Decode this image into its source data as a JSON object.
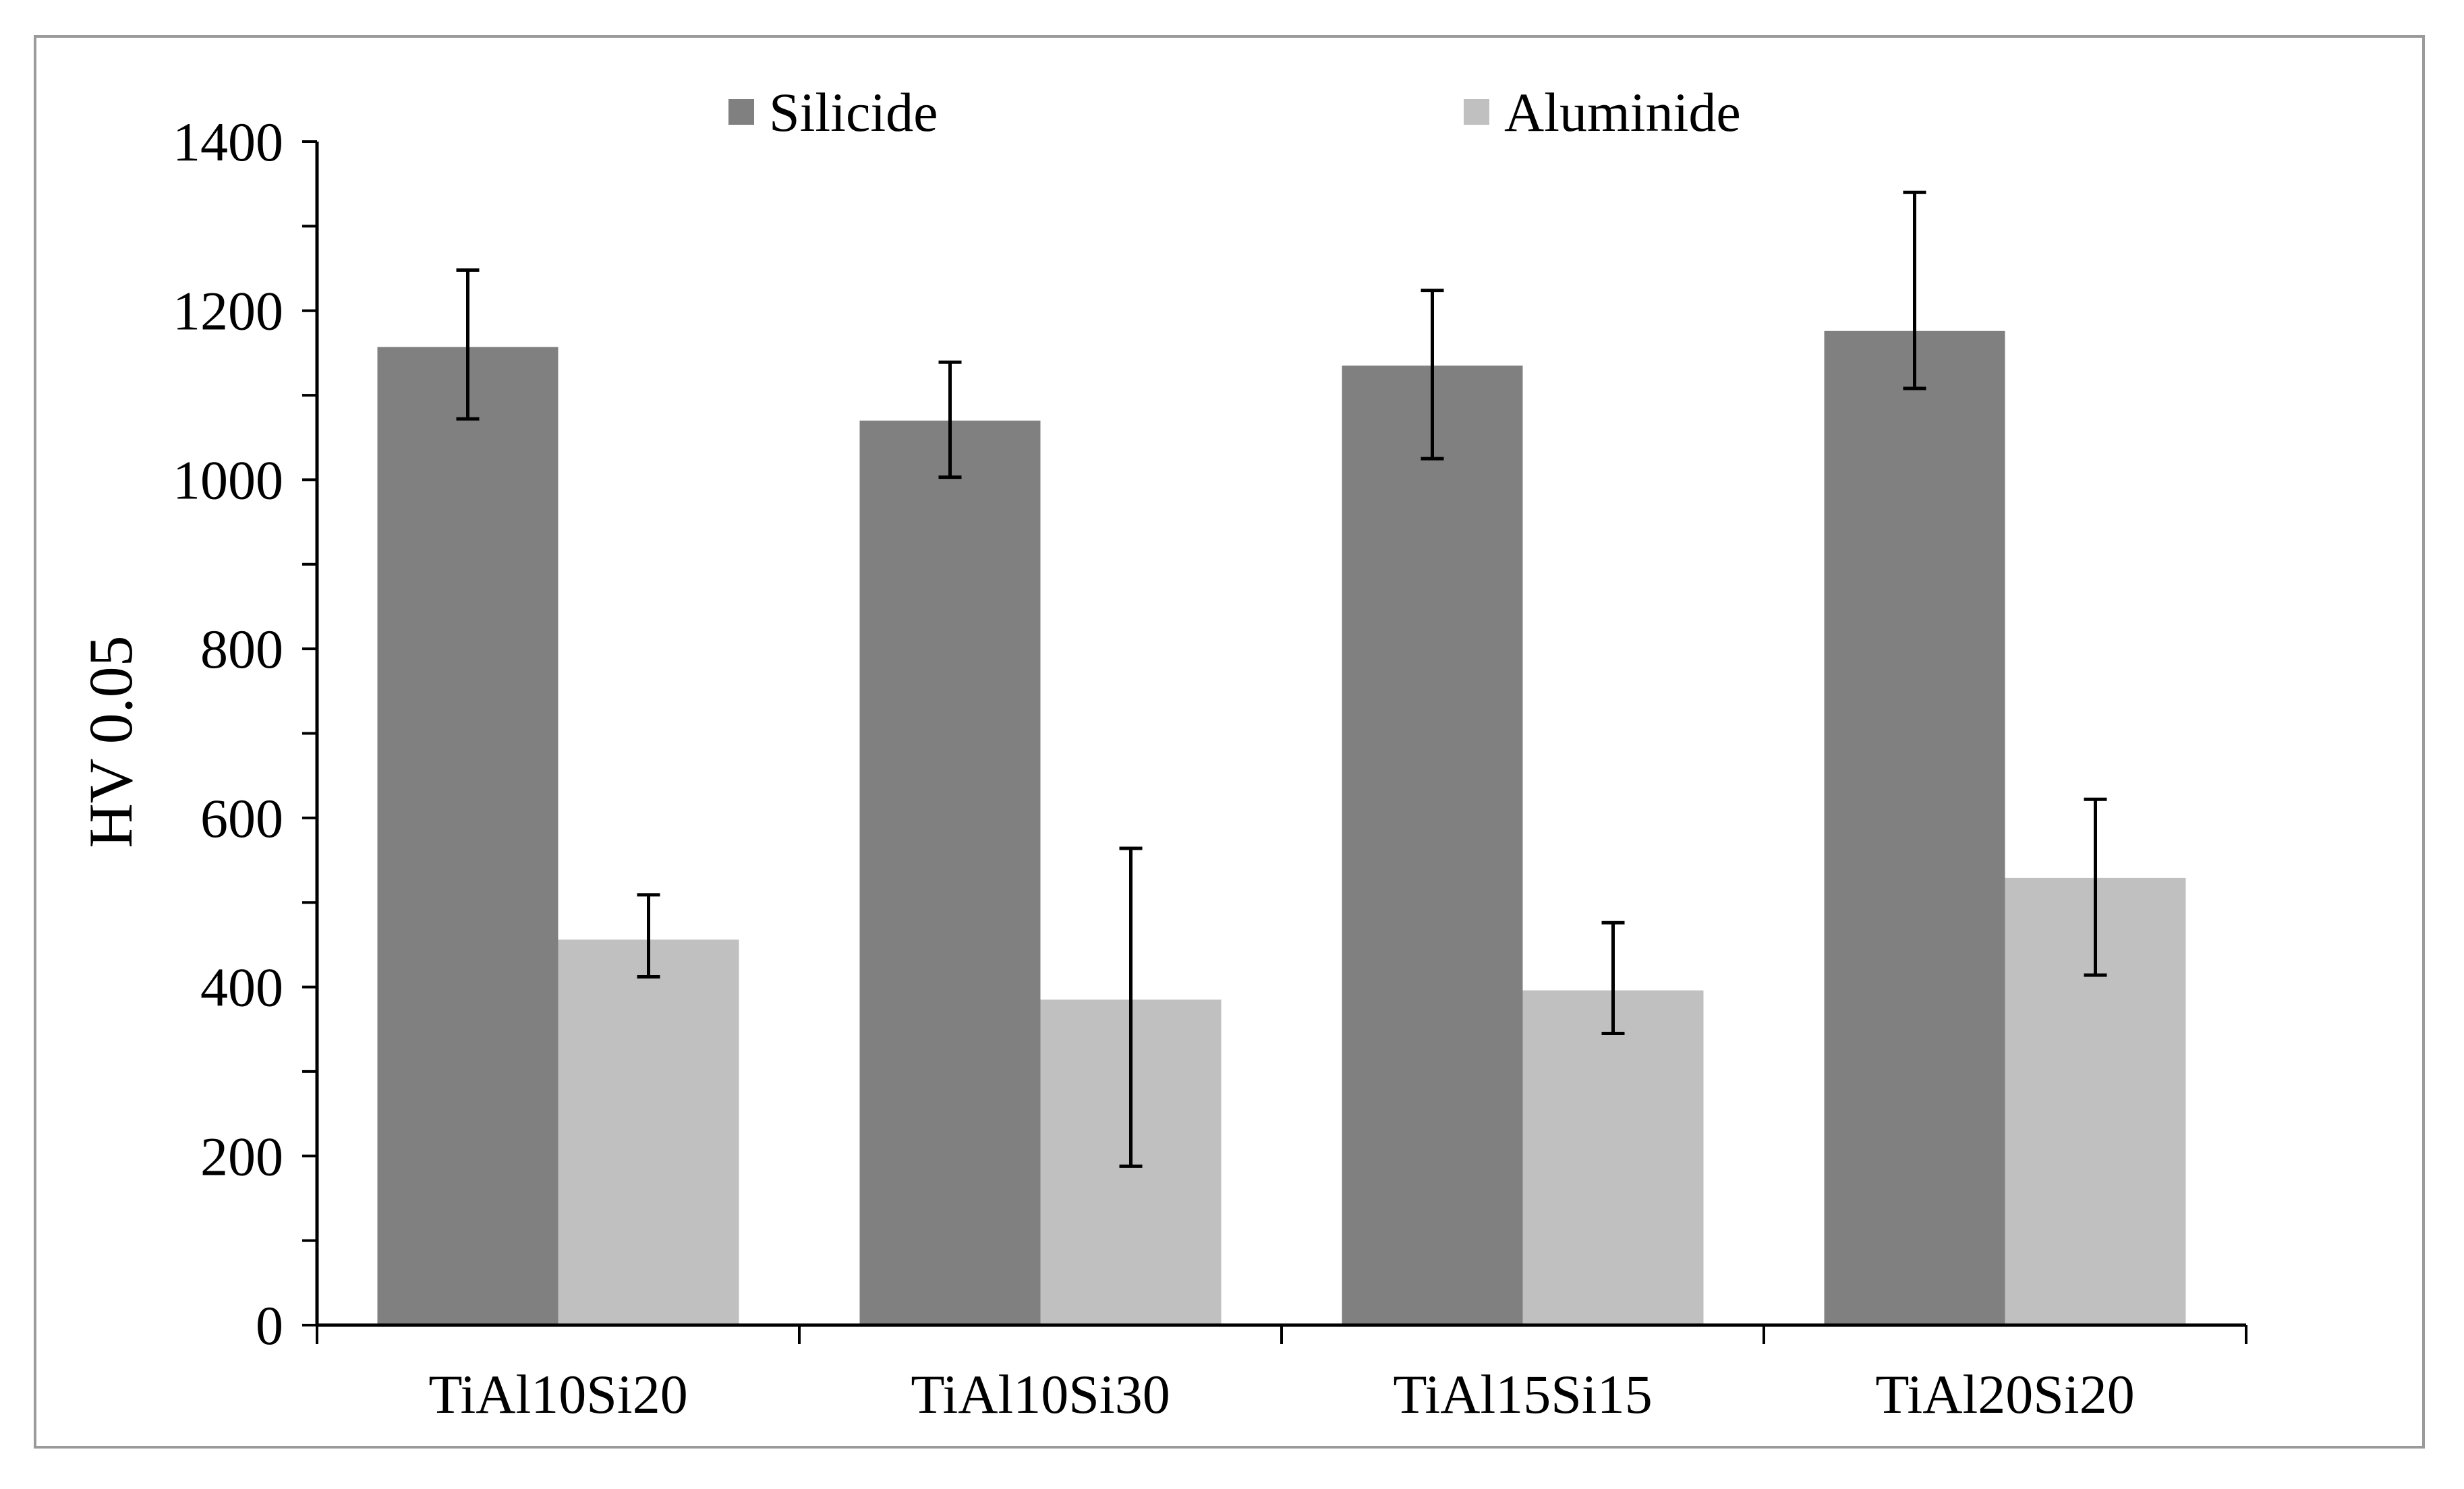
{
  "chart_data": {
    "type": "bar",
    "title": "",
    "xlabel": "",
    "ylabel": "HV 0.05",
    "ylim": [
      0,
      1400
    ],
    "yticks": [
      0,
      200,
      400,
      600,
      800,
      1000,
      1200,
      1400
    ],
    "categories": [
      "TiAl10Si20",
      "TiAl10Si30",
      "TiAl15Si15",
      "TiAl20Si20"
    ],
    "series": [
      {
        "name": "Silicide",
        "color": "#808080",
        "values": [
          1157,
          1070,
          1135,
          1176
        ],
        "error_low": [
          1072,
          1003,
          1025,
          1108
        ],
        "error_high": [
          1248,
          1139,
          1224,
          1340
        ]
      },
      {
        "name": "Aluminide",
        "color": "#c0c0c0",
        "values": [
          456,
          385,
          396,
          529
        ],
        "error_low": [
          412,
          188,
          345,
          414
        ],
        "error_high": [
          509,
          564,
          476,
          622
        ]
      }
    ],
    "legend_position": "top",
    "grid": false
  }
}
